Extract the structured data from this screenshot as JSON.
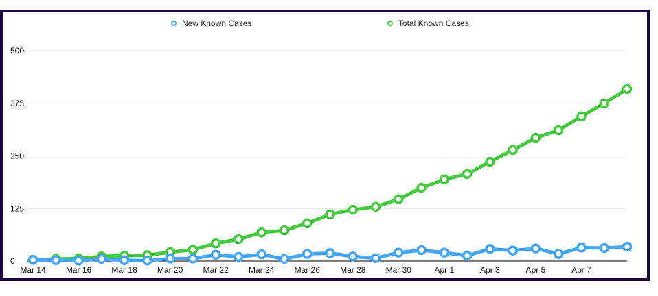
{
  "chart_data": {
    "type": "line",
    "title": "",
    "xlabel": "",
    "ylabel": "",
    "ylim": [
      0,
      500
    ],
    "yticks": [
      0,
      125,
      250,
      375,
      500
    ],
    "ytick_labels": [
      "0",
      "125",
      "250",
      "375",
      "500"
    ],
    "grid": true,
    "legend_position": "top",
    "x": [
      "Mar 14",
      "Mar 15",
      "Mar 16",
      "Mar 17",
      "Mar 18",
      "Mar 19",
      "Mar 20",
      "Mar 21",
      "Mar 22",
      "Mar 23",
      "Mar 24",
      "Mar 25",
      "Mar 26",
      "Mar 27",
      "Mar 28",
      "Mar 29",
      "Mar 30",
      "Mar 31",
      "Apr 1",
      "Apr 2",
      "Apr 3",
      "Apr 4",
      "Apr 5",
      "Apr 6",
      "Apr 7",
      "Apr 8",
      "Apr 9"
    ],
    "xtick_labels": [
      "Mar 14",
      "Mar 16",
      "Mar 18",
      "Mar 20",
      "Mar 22",
      "Mar 24",
      "Mar 26",
      "Mar 28",
      "Mar 30",
      "Apr 1",
      "Apr 3",
      "Apr 5",
      "Apr 7"
    ],
    "series": [
      {
        "name": "New Known Cases",
        "color": "#45a5f5",
        "values": [
          3,
          2,
          1,
          5,
          2,
          1,
          6,
          6,
          15,
          10,
          16,
          5,
          17,
          19,
          11,
          7,
          20,
          26,
          20,
          13,
          29,
          25,
          30,
          17,
          32,
          31,
          34
        ]
      },
      {
        "name": "Total Known Cases",
        "color": "#44c93e",
        "values": [
          3,
          5,
          6,
          11,
          13,
          14,
          21,
          27,
          42,
          52,
          68,
          73,
          90,
          111,
          122,
          129,
          147,
          174,
          194,
          207,
          236,
          264,
          293,
          311,
          344,
          375,
          409
        ]
      }
    ]
  }
}
